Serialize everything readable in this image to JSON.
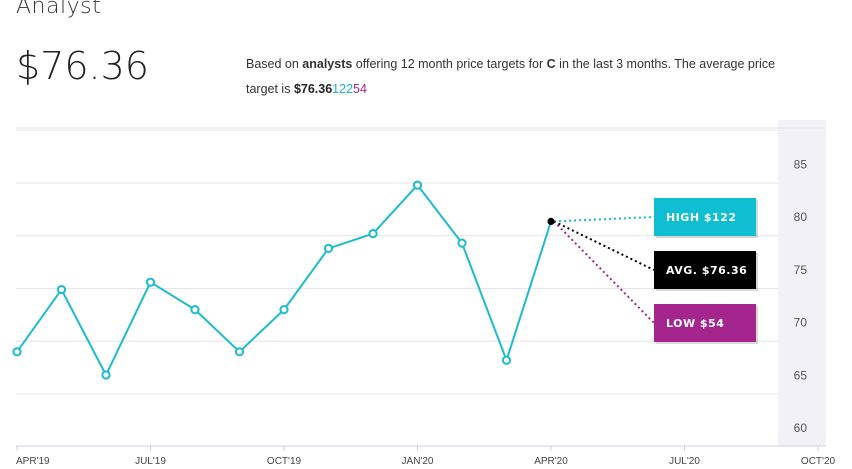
{
  "header": {
    "title": "Analyst",
    "avg_price": "$76.36"
  },
  "description": {
    "prefix": "Based on ",
    "analysts_word": "analysts",
    "middle": " offering 12 month price targets for ",
    "ticker": "C",
    "suffix": " in the last 3 months. The average price",
    "line2_prefix": "target is ",
    "avg_value": "$76.36",
    "high_value": "122",
    "low_value": "54"
  },
  "colors": {
    "line": "#1cbccc",
    "high": "#10bed2",
    "avg": "#000000",
    "low": "#a4258e",
    "forecast_band": "#f1f1f7"
  },
  "chart_data": {
    "type": "line",
    "x_labels": [
      "APR'19",
      "JUL'19",
      "OCT'19",
      "JAN'20",
      "APR'20",
      "JUL'20",
      "OCT'20"
    ],
    "y_ticks": [
      60,
      65,
      70,
      75,
      80,
      85
    ],
    "ylim": [
      58,
      88
    ],
    "grid": true,
    "series": [
      {
        "x": [
          "2019-04",
          "2019-05",
          "2019-06",
          "2019-07",
          "2019-08",
          "2019-09",
          "2019-10",
          "2019-11",
          "2019-12",
          "2020-01",
          "2020-02",
          "2020-03",
          "2020-04"
        ],
        "values": [
          64.0,
          69.9,
          61.8,
          70.6,
          68.0,
          64.0,
          68.0,
          73.8,
          75.2,
          79.8,
          74.3,
          63.2,
          76.36
        ]
      }
    ],
    "targets": {
      "high": {
        "label": "HIGH $122",
        "value": 122
      },
      "avg": {
        "label": "AVG. $76.36",
        "value": 76.36
      },
      "low": {
        "label": "LOW $54",
        "value": 54
      }
    }
  }
}
